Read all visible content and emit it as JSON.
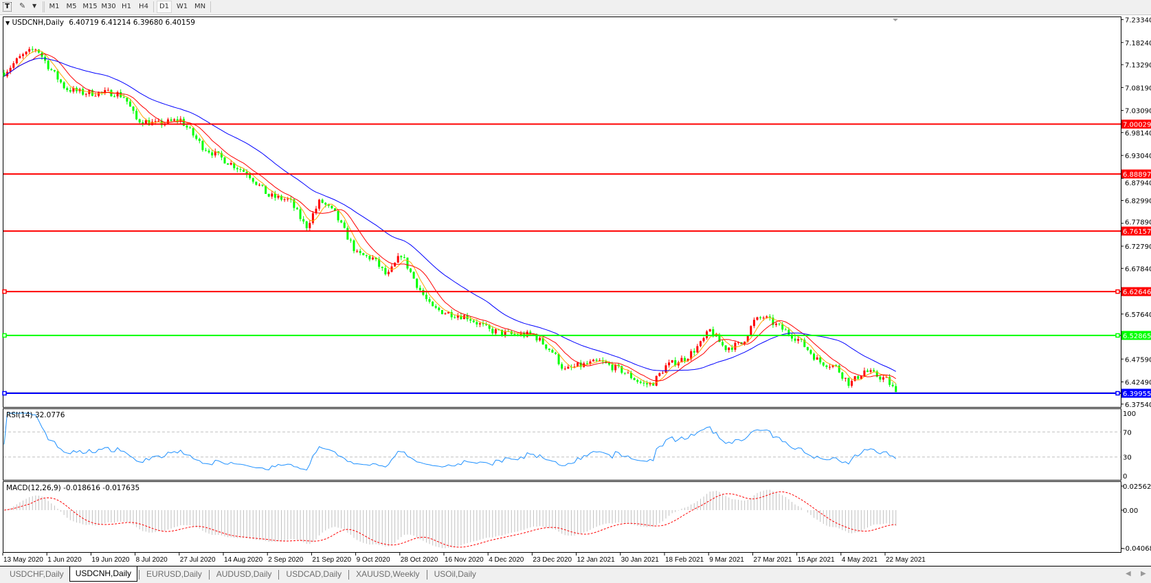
{
  "toolbar": {
    "timeframes": [
      "M1",
      "M5",
      "M15",
      "M30",
      "H1",
      "H4",
      "D1",
      "W1",
      "MN"
    ],
    "active_timeframe": "D1"
  },
  "chart": {
    "header": {
      "symbol": "USDCNH,Daily",
      "ohlc": "6.40719 6.41214 6.39680 6.40159"
    },
    "rsi_label": "RSI(14) 32.0776",
    "macd_label": "MACD(12,26,9) -0.018616 -0.017635",
    "colors": {
      "bull_candle": "#ff0000",
      "bear_candle": "#00ff00",
      "ma_fast": "#ffa500",
      "ma_mid": "#ff0000",
      "ma_slow": "#0000ff",
      "rsi_line": "#1e90ff",
      "macd_hist": "#c0c0c0",
      "macd_signal": "#ff0000"
    }
  },
  "chart_data": {
    "type": "candlestick",
    "price_axis": {
      "ylim": [
        6.3754,
        7.2334
      ],
      "ticks": [
        "7.23340",
        "7.18240",
        "7.13290",
        "7.08190",
        "7.03090",
        "6.98140",
        "6.93040",
        "6.87940",
        "6.82990",
        "6.77890",
        "6.72790",
        "6.67840",
        "6.57640",
        "6.47590",
        "6.42490",
        "6.37540"
      ]
    },
    "horizontal_lines": [
      {
        "price": "7.00029",
        "color": "#ff0000",
        "selected": false
      },
      {
        "price": "6.88897",
        "color": "#ff0000",
        "selected": false
      },
      {
        "price": "6.76157",
        "color": "#ff0000",
        "selected": false
      },
      {
        "price": "6.62646",
        "color": "#ff0000",
        "selected": true
      },
      {
        "price": "6.52865",
        "color": "#00ff00",
        "selected": true
      },
      {
        "price": "6.39955",
        "color": "#0000ff",
        "selected": true
      }
    ],
    "x_ticks": [
      "13 May 2020",
      "1 Jun 2020",
      "19 Jun 2020",
      "8 Jul 2020",
      "27 Jul 2020",
      "14 Aug 2020",
      "2 Sep 2020",
      "21 Sep 2020",
      "9 Oct 2020",
      "28 Oct 2020",
      "16 Nov 2020",
      "4 Dec 2020",
      "23 Dec 2020",
      "12 Jan 2021",
      "30 Jan 2021",
      "18 Feb 2021",
      "9 Mar 2021",
      "27 Mar 2021",
      "15 Apr 2021",
      "4 May 2021",
      "22 May 2021"
    ],
    "close_path": [
      {
        "date": "2020-05-13",
        "close": 7.115
      },
      {
        "date": "2020-05-20",
        "close": 7.15
      },
      {
        "date": "2020-05-27",
        "close": 7.17
      },
      {
        "date": "2020-06-01",
        "close": 7.13
      },
      {
        "date": "2020-06-08",
        "close": 7.08
      },
      {
        "date": "2020-06-15",
        "close": 7.07
      },
      {
        "date": "2020-06-22",
        "close": 7.07
      },
      {
        "date": "2020-06-29",
        "close": 7.07
      },
      {
        "date": "2020-07-03",
        "close": 7.06
      },
      {
        "date": "2020-07-08",
        "close": 7.01
      },
      {
        "date": "2020-07-17",
        "close": 7.0
      },
      {
        "date": "2020-07-27",
        "close": 7.01
      },
      {
        "date": "2020-08-05",
        "close": 6.95
      },
      {
        "date": "2020-08-14",
        "close": 6.92
      },
      {
        "date": "2020-08-24",
        "close": 6.89
      },
      {
        "date": "2020-09-02",
        "close": 6.84
      },
      {
        "date": "2020-09-11",
        "close": 6.83
      },
      {
        "date": "2020-09-18",
        "close": 6.77
      },
      {
        "date": "2020-09-24",
        "close": 6.83
      },
      {
        "date": "2020-09-30",
        "close": 6.8
      },
      {
        "date": "2020-10-09",
        "close": 6.71
      },
      {
        "date": "2020-10-16",
        "close": 6.7
      },
      {
        "date": "2020-10-22",
        "close": 6.66
      },
      {
        "date": "2020-10-28",
        "close": 6.71
      },
      {
        "date": "2020-11-04",
        "close": 6.64
      },
      {
        "date": "2020-11-10",
        "close": 6.59
      },
      {
        "date": "2020-11-16",
        "close": 6.58
      },
      {
        "date": "2020-11-25",
        "close": 6.57
      },
      {
        "date": "2020-12-04",
        "close": 6.54
      },
      {
        "date": "2020-12-14",
        "close": 6.53
      },
      {
        "date": "2020-12-23",
        "close": 6.53
      },
      {
        "date": "2021-01-01",
        "close": 6.49
      },
      {
        "date": "2021-01-06",
        "close": 6.45
      },
      {
        "date": "2021-01-12",
        "close": 6.46
      },
      {
        "date": "2021-01-21",
        "close": 6.47
      },
      {
        "date": "2021-01-30",
        "close": 6.45
      },
      {
        "date": "2021-02-08",
        "close": 6.42
      },
      {
        "date": "2021-02-12",
        "close": 6.42
      },
      {
        "date": "2021-02-18",
        "close": 6.46
      },
      {
        "date": "2021-02-27",
        "close": 6.48
      },
      {
        "date": "2021-03-05",
        "close": 6.51
      },
      {
        "date": "2021-03-09",
        "close": 6.54
      },
      {
        "date": "2021-03-15",
        "close": 6.5
      },
      {
        "date": "2021-03-22",
        "close": 6.51
      },
      {
        "date": "2021-03-27",
        "close": 6.56
      },
      {
        "date": "2021-03-31",
        "close": 6.57
      },
      {
        "date": "2021-04-06",
        "close": 6.55
      },
      {
        "date": "2021-04-15",
        "close": 6.52
      },
      {
        "date": "2021-04-24",
        "close": 6.47
      },
      {
        "date": "2021-05-01",
        "close": 6.46
      },
      {
        "date": "2021-05-04",
        "close": 6.44
      },
      {
        "date": "2021-05-07",
        "close": 6.42
      },
      {
        "date": "2021-05-13",
        "close": 6.45
      },
      {
        "date": "2021-05-22",
        "close": 6.43
      },
      {
        "date": "2021-05-26",
        "close": 6.40159
      }
    ],
    "rsi_axis": {
      "ylim": [
        0,
        100
      ],
      "ticks": [
        "100",
        "70",
        "30",
        "0"
      ],
      "levels": [
        70,
        30
      ]
    },
    "macd_axis": {
      "ylim": [
        -0.040687,
        0.025623
      ],
      "ticks": [
        "0.025623",
        "0.00",
        "-0.040687"
      ]
    }
  },
  "tabs": [
    {
      "label": "USDCHF,Daily",
      "active": false
    },
    {
      "label": "USDCNH,Daily",
      "active": true
    },
    {
      "label": "EURUSD,Daily",
      "active": false
    },
    {
      "label": "AUDUSD,Daily",
      "active": false
    },
    {
      "label": "USDCAD,Daily",
      "active": false
    },
    {
      "label": "XAUUSD,Weekly",
      "active": false
    },
    {
      "label": "USOil,Daily",
      "active": false
    }
  ]
}
